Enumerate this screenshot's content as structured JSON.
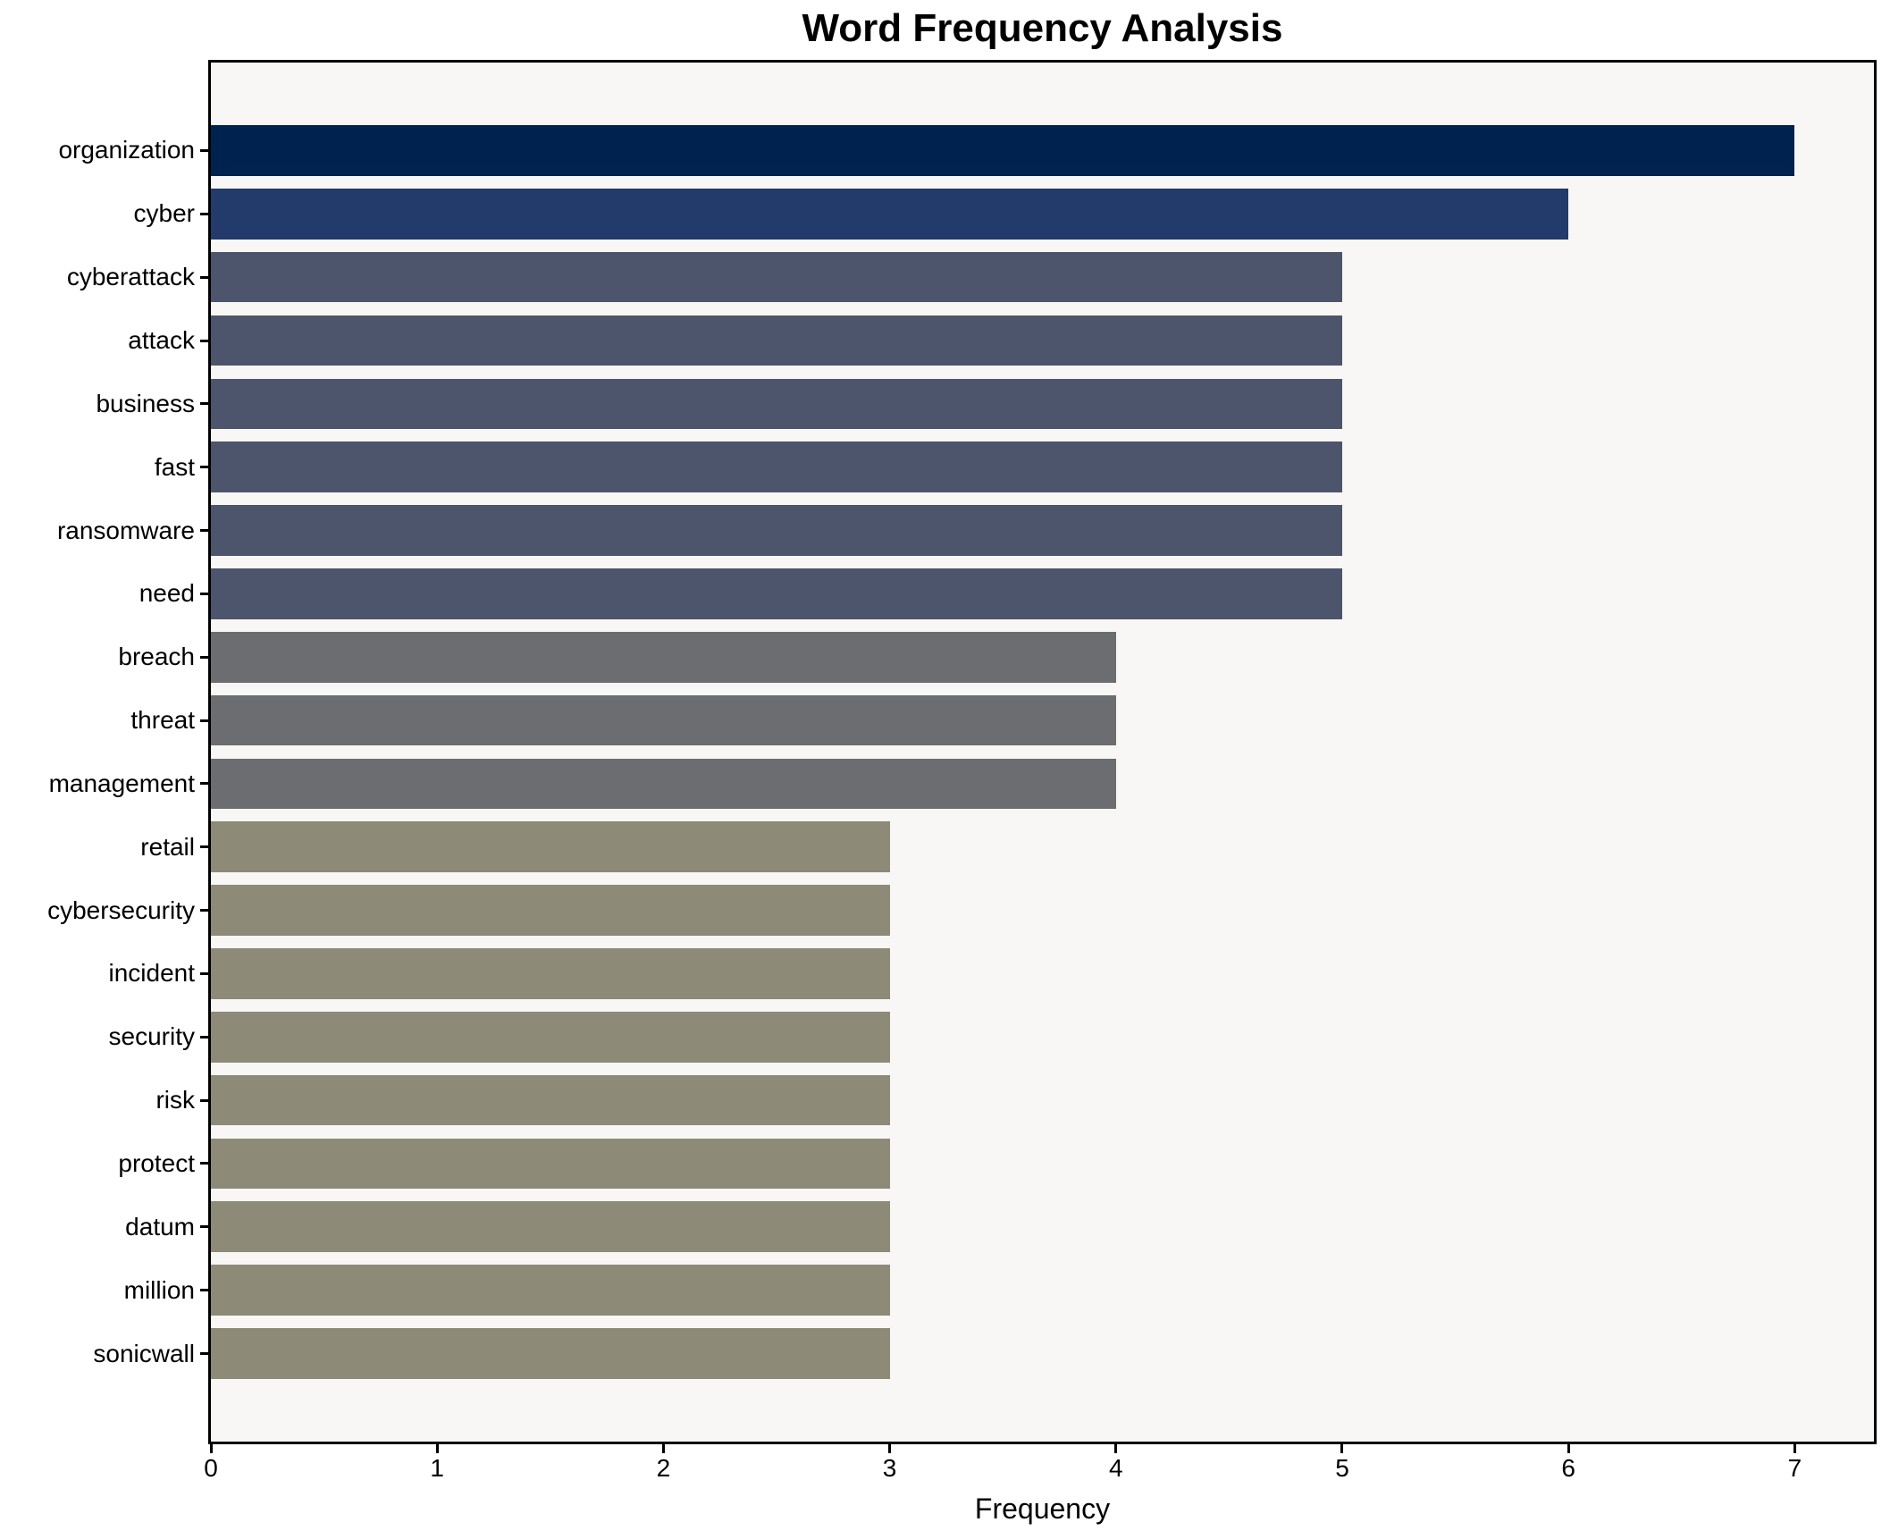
{
  "chart_data": {
    "type": "bar",
    "orientation": "horizontal",
    "title": "Word Frequency Analysis",
    "xlabel": "Frequency",
    "ylabel": "",
    "categories": [
      "organization",
      "cyber",
      "cyberattack",
      "attack",
      "business",
      "fast",
      "ransomware",
      "need",
      "breach",
      "threat",
      "management",
      "retail",
      "cybersecurity",
      "incident",
      "security",
      "risk",
      "protect",
      "datum",
      "million",
      "sonicwall"
    ],
    "values": [
      7,
      6,
      5,
      5,
      5,
      5,
      5,
      5,
      4,
      4,
      4,
      3,
      3,
      3,
      3,
      3,
      3,
      3,
      3,
      3
    ],
    "xticks": [
      0,
      1,
      2,
      3,
      4,
      5,
      6,
      7
    ],
    "xlim": [
      0,
      7.35
    ],
    "grid": false,
    "legend": "none",
    "colors_by_value": {
      "7": "#00224e",
      "6": "#223b6a",
      "5": "#4d556c",
      "4": "#6b6d70",
      "3": "#8e8a78"
    },
    "plot_background": "#f8f7f5",
    "figure_background": "#ffffff",
    "spine_color": "#000000",
    "text_color": "#000000"
  }
}
